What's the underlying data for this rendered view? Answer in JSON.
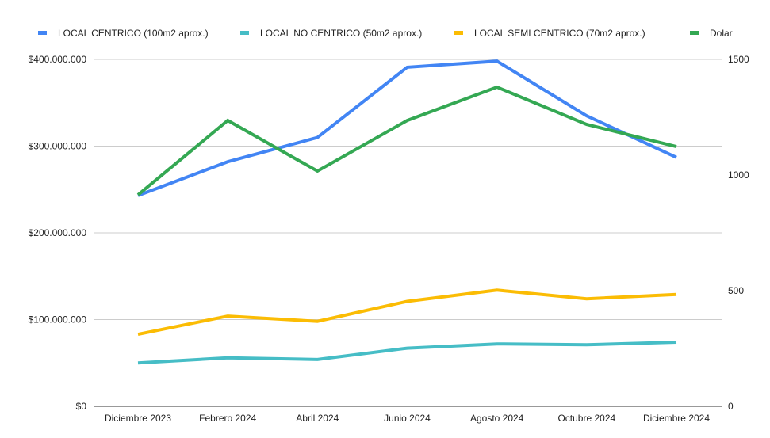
{
  "chart_data": {
    "type": "line",
    "title": "",
    "xlabel": "",
    "ylabel": "",
    "ylabel_right": "",
    "legend_position": "top",
    "grid": true,
    "categories": [
      "Diciembre 2023",
      "Febrero 2024",
      "Abril 2024",
      "Junio 2024",
      "Agosto 2024",
      "Octubre 2024",
      "Diciembre 2024"
    ],
    "ylim": [
      0,
      400000000
    ],
    "yticks": [
      0,
      100000000,
      200000000,
      300000000,
      400000000
    ],
    "ytick_labels": [
      "$0",
      "$100.000.000",
      "$200.000.000",
      "$300.000.000",
      "$400.000.000"
    ],
    "ylim_right": [
      0,
      1500
    ],
    "yticks_right": [
      0,
      500,
      1000,
      1500
    ],
    "ytick_labels_right": [
      "0",
      "500",
      "1000",
      "1500"
    ],
    "series": [
      {
        "name": "LOCAL CENTRICO (100m2 aprox.)",
        "axis": "left",
        "color": "#4285f4",
        "values": [
          243000000,
          282000000,
          310000000,
          391000000,
          398000000,
          335000000,
          287000000
        ]
      },
      {
        "name": "LOCAL NO CENTRICO (50m2 aprox.)",
        "axis": "left",
        "color": "#46bdc6",
        "values": [
          50000000,
          56000000,
          54000000,
          67000000,
          72000000,
          71000000,
          74000000
        ]
      },
      {
        "name": "LOCAL SEMI CENTRICO (70m2 aprox.)",
        "axis": "left",
        "color": "#fbbc04",
        "values": [
          83000000,
          104000000,
          98000000,
          121000000,
          134000000,
          124000000,
          129000000
        ]
      },
      {
        "name": "Dolar",
        "axis": "right",
        "color": "#34a853",
        "values": [
          914,
          1236,
          1017,
          1236,
          1380,
          1219,
          1123
        ]
      }
    ]
  }
}
